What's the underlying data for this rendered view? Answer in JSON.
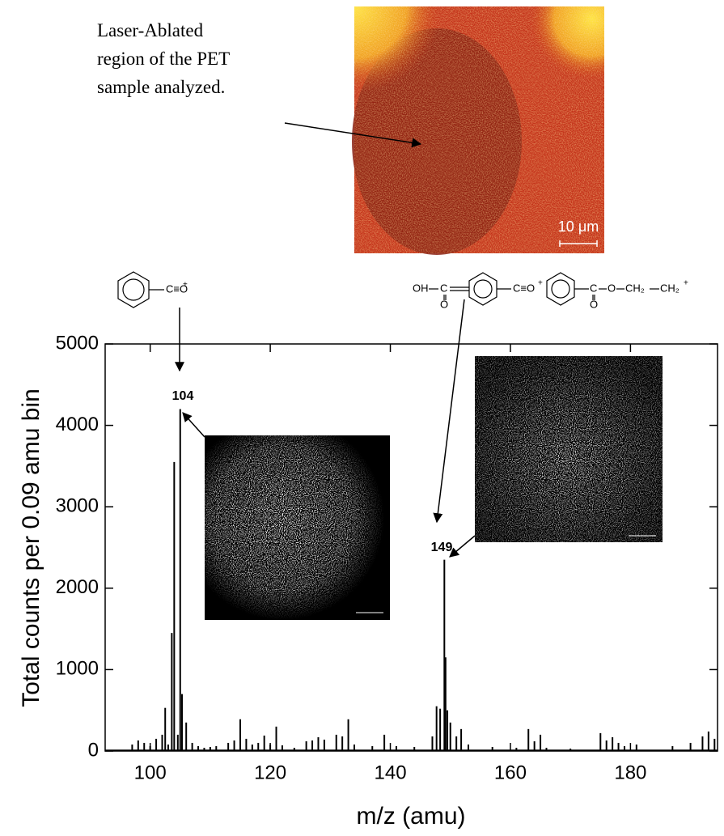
{
  "chart_data": {
    "type": "stem",
    "xlabel": "m/z (amu)",
    "ylabel": "Total counts per 0.09 amu bin",
    "xlim": [
      92.5,
      194.5
    ],
    "ylim": [
      0,
      5000
    ],
    "xticks": [
      100,
      120,
      140,
      160,
      180
    ],
    "yticks": [
      0,
      1000,
      2000,
      3000,
      4000,
      5000
    ],
    "color": "#000000",
    "x": [
      97,
      98,
      99,
      100,
      101,
      102,
      102.5,
      103,
      103.6,
      104,
      104.6,
      105,
      105.3,
      106,
      107,
      108,
      109,
      110,
      111,
      113,
      114,
      115,
      116,
      117,
      118,
      119,
      120,
      121,
      122,
      124,
      126,
      127,
      128,
      129,
      131,
      132,
      133,
      134,
      137,
      139,
      141,
      144,
      147,
      147.7,
      148.3,
      149,
      149.2,
      149.5,
      150,
      151,
      151.8,
      153,
      157,
      161,
      163,
      164,
      165,
      166,
      170,
      175,
      176,
      177,
      178,
      179,
      181,
      187,
      190,
      192,
      193,
      194
    ],
    "values": [
      80,
      130,
      100,
      60,
      150,
      200,
      530,
      80,
      1450,
      3550,
      200,
      4200,
      700,
      350,
      100,
      60,
      40,
      50,
      60,
      100,
      130,
      390,
      150,
      80,
      100,
      190,
      80,
      300,
      70,
      40,
      120,
      130,
      170,
      140,
      200,
      180,
      390,
      80,
      60,
      200,
      60,
      50,
      180,
      550,
      520,
      2350,
      1150,
      500,
      350,
      180,
      270,
      80,
      50,
      40,
      270,
      120,
      200,
      40,
      30,
      220,
      130,
      170,
      100,
      60,
      80,
      60,
      100,
      180,
      240,
      150
    ],
    "annotations": [
      "104",
      "149"
    ],
    "image_caption": "Laser-Ablated region of the PET sample analyzed.",
    "scale_bar": "10 μm",
    "structures": [
      {
        "parts": [
          "C≡O",
          "+"
        ]
      },
      {
        "parts": [
          "OH",
          "C",
          "O",
          "C≡O",
          "+"
        ]
      },
      {
        "parts": [
          "C",
          "O",
          "O",
          "CH₂",
          "CH₂",
          "+"
        ]
      }
    ]
  }
}
